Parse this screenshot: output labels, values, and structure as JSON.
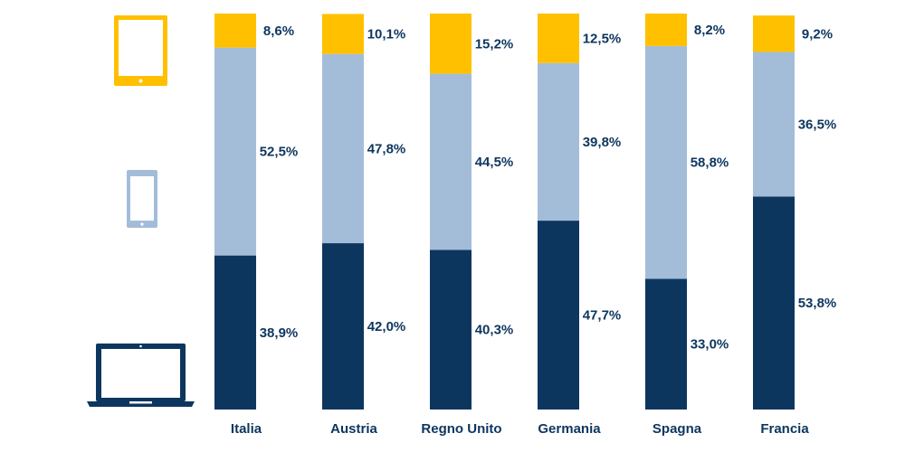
{
  "colors": {
    "desktop": "#0d365f",
    "mobile": "#a3bdd9",
    "tablet": "#ffc000",
    "label": "#0d365f"
  },
  "legend_icons": [
    {
      "name": "tablet-icon",
      "series": "tablet"
    },
    {
      "name": "smartphone-icon",
      "series": "mobile"
    },
    {
      "name": "laptop-icon",
      "series": "desktop"
    }
  ],
  "chart_data": {
    "type": "bar",
    "stacked": true,
    "orientation": "vertical",
    "categories": [
      "Italia",
      "Austria",
      "Regno Unito",
      "Germania",
      "Spagna",
      "Francia"
    ],
    "series": [
      {
        "key": "desktop",
        "values": [
          38.9,
          42.0,
          40.3,
          47.7,
          33.0,
          53.8
        ]
      },
      {
        "key": "mobile",
        "values": [
          52.5,
          47.8,
          44.5,
          39.8,
          58.8,
          36.5
        ]
      },
      {
        "key": "tablet",
        "values": [
          8.6,
          10.1,
          15.2,
          12.5,
          8.2,
          9.2
        ]
      }
    ],
    "value_labels": {
      "desktop": [
        "38,9%",
        "42,0%",
        "40,3%",
        "47,7%",
        "33,0%",
        "53,8%"
      ],
      "mobile": [
        "52,5%",
        "47,8%",
        "44,5%",
        "39,8%",
        "58,8%",
        "36,5%"
      ],
      "tablet": [
        "8,6%",
        "10,1%",
        "15,2%",
        "12,5%",
        "8,2%",
        "9,2%"
      ]
    },
    "ylim": [
      0,
      100
    ],
    "grid": false,
    "axes_visible": false
  }
}
